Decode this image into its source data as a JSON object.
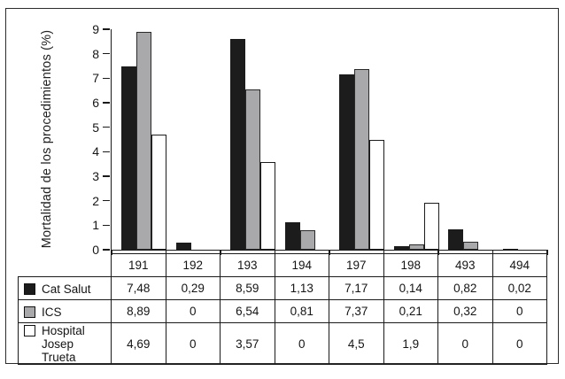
{
  "figure": {
    "y_ticks": [
      "0",
      "1",
      "2",
      "3",
      "4",
      "5",
      "6",
      "7",
      "8",
      "9"
    ]
  },
  "chart_data": {
    "type": "bar",
    "title": "",
    "xlabel": "",
    "ylabel": "Mortalidad de los procedimientos (%)",
    "ylim": [
      0,
      9
    ],
    "grid": false,
    "legend_position": "table-left",
    "categories": [
      "191",
      "192",
      "193",
      "194",
      "197",
      "198",
      "493",
      "494"
    ],
    "series": [
      {
        "name": "Cat Salut",
        "color": "#1c1c1c",
        "values": [
          7.48,
          0.29,
          8.59,
          1.13,
          7.17,
          0.14,
          0.82,
          0.02
        ]
      },
      {
        "name": "ICS",
        "color": "#a9a9ab",
        "values": [
          8.89,
          0,
          6.54,
          0.81,
          7.37,
          0.21,
          0.32,
          0
        ]
      },
      {
        "name": "Hospital Josep Trueta",
        "color": "#ffffff",
        "values": [
          4.69,
          0,
          3.57,
          0,
          4.5,
          1.9,
          0,
          0
        ]
      }
    ]
  },
  "table": {
    "columns": [
      "191",
      "192",
      "193",
      "194",
      "197",
      "198",
      "493",
      "494"
    ],
    "rows": [
      {
        "label": "Cat Salut",
        "swatch": "#1c1c1c",
        "cells": [
          "7,48",
          "0,29",
          "8,59",
          "1,13",
          "7,17",
          "0,14",
          "0,82",
          "0,02"
        ]
      },
      {
        "label": "ICS",
        "swatch": "#a9a9ab",
        "cells": [
          "8,89",
          "0",
          "6,54",
          "0,81",
          "7,37",
          "0,21",
          "0,32",
          "0"
        ]
      },
      {
        "label": "Hospital\nJosep Trueta",
        "swatch": "#ffffff",
        "cells": [
          "4,69",
          "0",
          "3,57",
          "0",
          "4,5",
          "1,9",
          "0",
          "0"
        ]
      }
    ]
  }
}
